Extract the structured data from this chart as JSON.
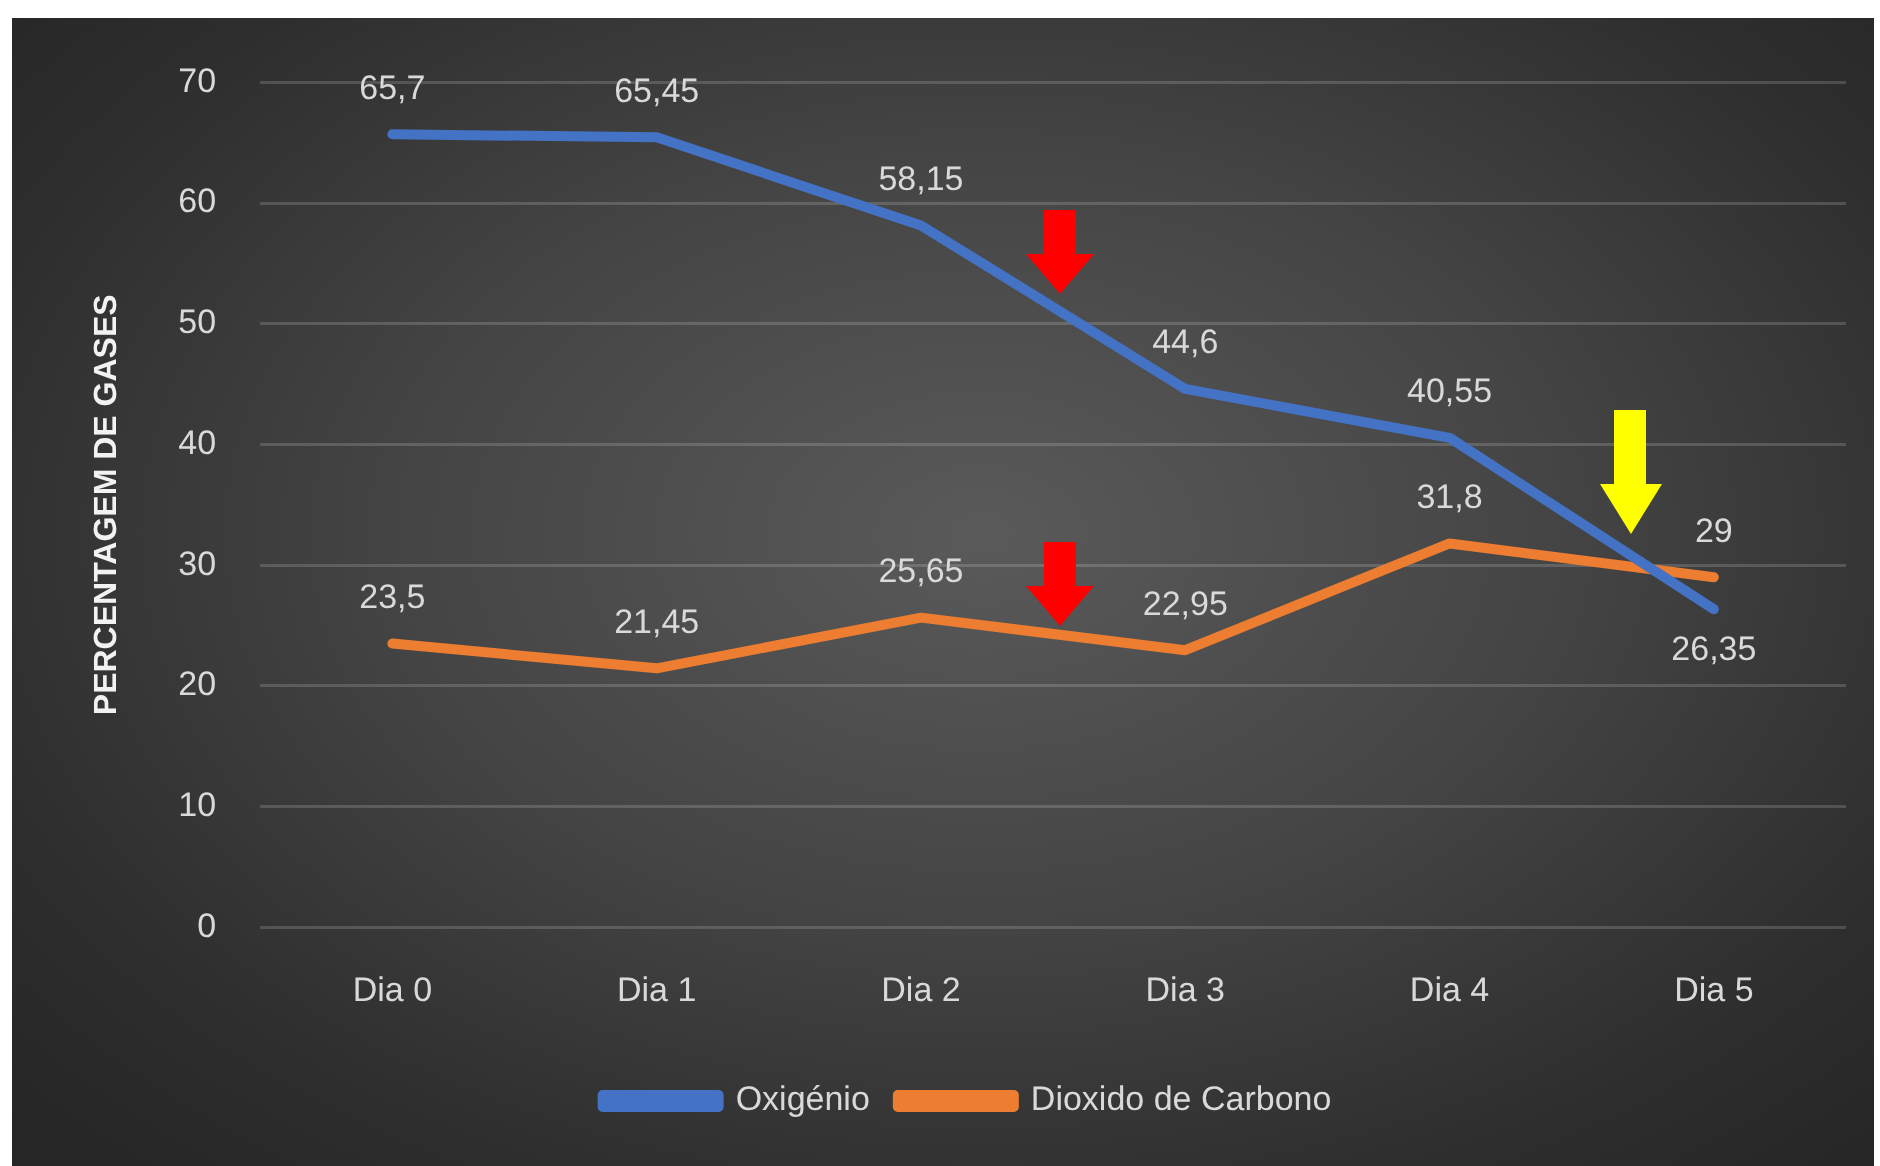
{
  "chart_data": {
    "type": "line",
    "ylabel": "PERCENTAGEM DE GASES",
    "categories": [
      "Dia 0",
      "Dia 1",
      "Dia 2",
      "Dia 3",
      "Dia 4",
      "Dia 5"
    ],
    "series": [
      {
        "name": "Oxigénio",
        "color": "#4472c4",
        "values": [
          65.7,
          65.45,
          58.15,
          44.6,
          40.55,
          26.35
        ],
        "value_labels": [
          "65,7",
          "65,45",
          "58,15",
          "44,6",
          "40,55",
          "26,35"
        ]
      },
      {
        "name": "Dioxido de Carbono",
        "color": "#ed7d31",
        "values": [
          23.5,
          21.45,
          25.65,
          22.95,
          31.8,
          29
        ],
        "value_labels": [
          "23,5",
          "21,45",
          "25,65",
          "22,95",
          "31,8",
          "29"
        ]
      }
    ],
    "ylim": [
      0,
      70
    ],
    "yticks": [
      0,
      10,
      20,
      30,
      40,
      50,
      60,
      70
    ],
    "grid": "y",
    "legend": "bottom"
  }
}
